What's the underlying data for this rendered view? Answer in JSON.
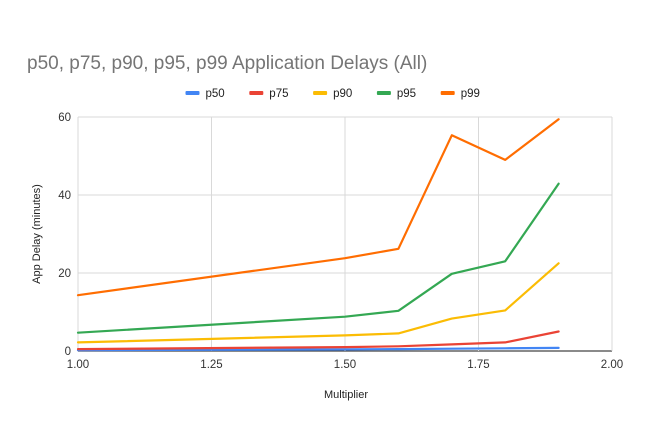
{
  "chart_data": {
    "type": "line",
    "title": "p50, p75, p90, p95, p99 Application Delays (All)",
    "xlabel": "Multiplier",
    "ylabel": "App Delay (minutes)",
    "xlim": [
      1.0,
      2.0
    ],
    "ylim": [
      0,
      60
    ],
    "x_ticks": [
      "1.00",
      "1.25",
      "1.50",
      "1.75",
      "2.00"
    ],
    "y_ticks": [
      "0",
      "20",
      "40",
      "60"
    ],
    "grid": true,
    "legend_position": "top",
    "x": [
      1.0,
      1.5,
      1.6,
      1.7,
      1.8,
      1.9
    ],
    "series": [
      {
        "name": "p50",
        "color": "#4285f4",
        "values": [
          0.2,
          0.4,
          0.5,
          0.6,
          0.7,
          0.8
        ]
      },
      {
        "name": "p75",
        "color": "#ea4335",
        "values": [
          0.5,
          1.0,
          1.2,
          1.7,
          2.2,
          5.0
        ]
      },
      {
        "name": "p90",
        "color": "#fbbc04",
        "values": [
          2.2,
          4.0,
          4.5,
          8.3,
          10.4,
          22.5
        ]
      },
      {
        "name": "p95",
        "color": "#34a853",
        "values": [
          4.7,
          8.8,
          10.3,
          19.8,
          23.0,
          42.9
        ]
      },
      {
        "name": "p99",
        "color": "#ff6d01",
        "values": [
          14.3,
          23.8,
          26.2,
          55.3,
          49.0,
          59.4
        ]
      }
    ]
  }
}
